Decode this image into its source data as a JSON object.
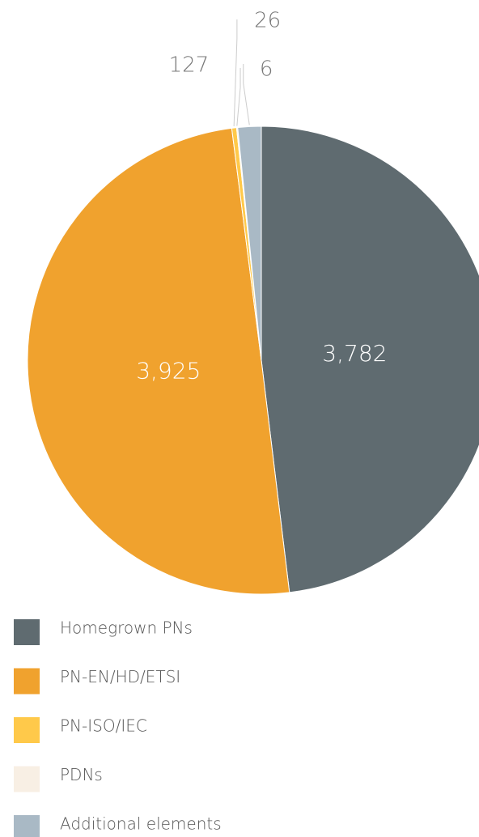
{
  "chart_data": {
    "type": "pie",
    "categories": [
      "Homegrown PNs",
      "PN-EN/HD/ETSI",
      "PN-ISO/IEC",
      "PDNs",
      "Additional elements"
    ],
    "values": [
      3782,
      3925,
      26,
      6,
      127
    ],
    "value_labels": [
      "3,782",
      "3,925",
      "26",
      "6",
      "127"
    ],
    "colors": [
      "#5f6b70",
      "#f0a22e",
      "#ffc94a",
      "#f8efe4",
      "#a9b9c5"
    ]
  }
}
